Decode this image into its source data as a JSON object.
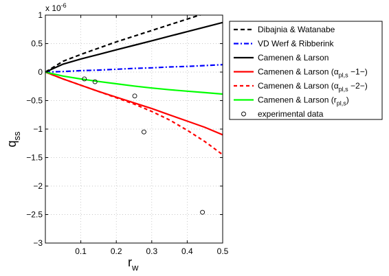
{
  "chart_data": {
    "type": "line",
    "xlabel": "r",
    "xlabel_sub": "w",
    "ylabel": "q",
    "ylabel_sub": "ss",
    "y_multiplier_text": "x 10",
    "y_multiplier_exp": "-6",
    "xlim": [
      0,
      0.5
    ],
    "ylim": [
      -3,
      1
    ],
    "grid": true,
    "legend_position": "outside-right",
    "x_ticks": [
      0.1,
      0.2,
      0.3,
      0.4,
      0.5
    ],
    "x_tick_labels": [
      "0.1",
      "0.2",
      "0.3",
      "0.4",
      "0.5"
    ],
    "y_ticks": [
      -3,
      -2.5,
      -2,
      -1.5,
      -1,
      -0.5,
      0,
      0.5,
      1
    ],
    "y_tick_labels": [
      "−3",
      "−2.5",
      "−2",
      "−1.5",
      "−1",
      "−0.5",
      "0",
      "0.5",
      "1"
    ],
    "series": [
      {
        "label": "Dibajnia & Watanabe",
        "color": "#000000",
        "dash": "6,4",
        "x": [
          0,
          0.05,
          0.1,
          0.15,
          0.2,
          0.25,
          0.3,
          0.35,
          0.4,
          0.45
        ],
        "y": [
          0,
          0.19,
          0.31,
          0.42,
          0.53,
          0.63,
          0.73,
          0.83,
          0.93,
          1.03
        ]
      },
      {
        "label": "VD Werf & Ribberink",
        "color": "#0000ff",
        "dash": "7,3,2,3",
        "x": [
          0,
          0.05,
          0.1,
          0.15,
          0.2,
          0.25,
          0.3,
          0.35,
          0.4,
          0.45,
          0.5
        ],
        "y": [
          0,
          0.01,
          0.025,
          0.035,
          0.05,
          0.065,
          0.075,
          0.09,
          0.1,
          0.115,
          0.13
        ]
      },
      {
        "label": "Camenen & Larson",
        "color": "#000000",
        "dash": "",
        "x": [
          0,
          0.05,
          0.1,
          0.15,
          0.2,
          0.25,
          0.3,
          0.35,
          0.4,
          0.45,
          0.5
        ],
        "y": [
          0,
          0.14,
          0.23,
          0.31,
          0.39,
          0.47,
          0.55,
          0.63,
          0.71,
          0.79,
          0.87
        ]
      },
      {
        "label_pre": "Camenen & Larson (α",
        "label_sub": "pl,s",
        "label_post": " −1−)",
        "color": "#ff0000",
        "dash": "",
        "x": [
          0,
          0.05,
          0.1,
          0.15,
          0.2,
          0.25,
          0.3,
          0.35,
          0.4,
          0.45,
          0.5
        ],
        "y": [
          0,
          -0.12,
          -0.23,
          -0.34,
          -0.44,
          -0.54,
          -0.64,
          -0.75,
          -0.86,
          -0.97,
          -1.1
        ]
      },
      {
        "label_pre": "Camenen & Larson (α",
        "label_sub": "pl,s",
        "label_post": " −2−)",
        "color": "#ff0000",
        "dash": "5,4",
        "x": [
          0,
          0.05,
          0.1,
          0.15,
          0.2,
          0.25,
          0.3,
          0.35,
          0.4,
          0.45,
          0.5
        ],
        "y": [
          0,
          -0.12,
          -0.23,
          -0.34,
          -0.45,
          -0.56,
          -0.69,
          -0.84,
          -1.02,
          -1.22,
          -1.45
        ]
      },
      {
        "label_pre": "Camenen & Larson (r",
        "label_sub": "pl,s",
        "label_post": ")",
        "color": "#00ff00",
        "dash": "",
        "x": [
          0,
          0.05,
          0.1,
          0.15,
          0.2,
          0.25,
          0.3,
          0.35,
          0.4,
          0.45,
          0.5
        ],
        "y": [
          0,
          -0.07,
          -0.12,
          -0.165,
          -0.205,
          -0.245,
          -0.28,
          -0.31,
          -0.335,
          -0.36,
          -0.385
        ]
      }
    ],
    "experimental_data": {
      "label": "experimental data",
      "points": [
        {
          "x": 0.11,
          "y": -0.12
        },
        {
          "x": 0.14,
          "y": -0.17
        },
        {
          "x": 0.252,
          "y": -0.42
        },
        {
          "x": 0.278,
          "y": -1.05
        },
        {
          "x": 0.443,
          "y": -2.46
        }
      ]
    }
  }
}
